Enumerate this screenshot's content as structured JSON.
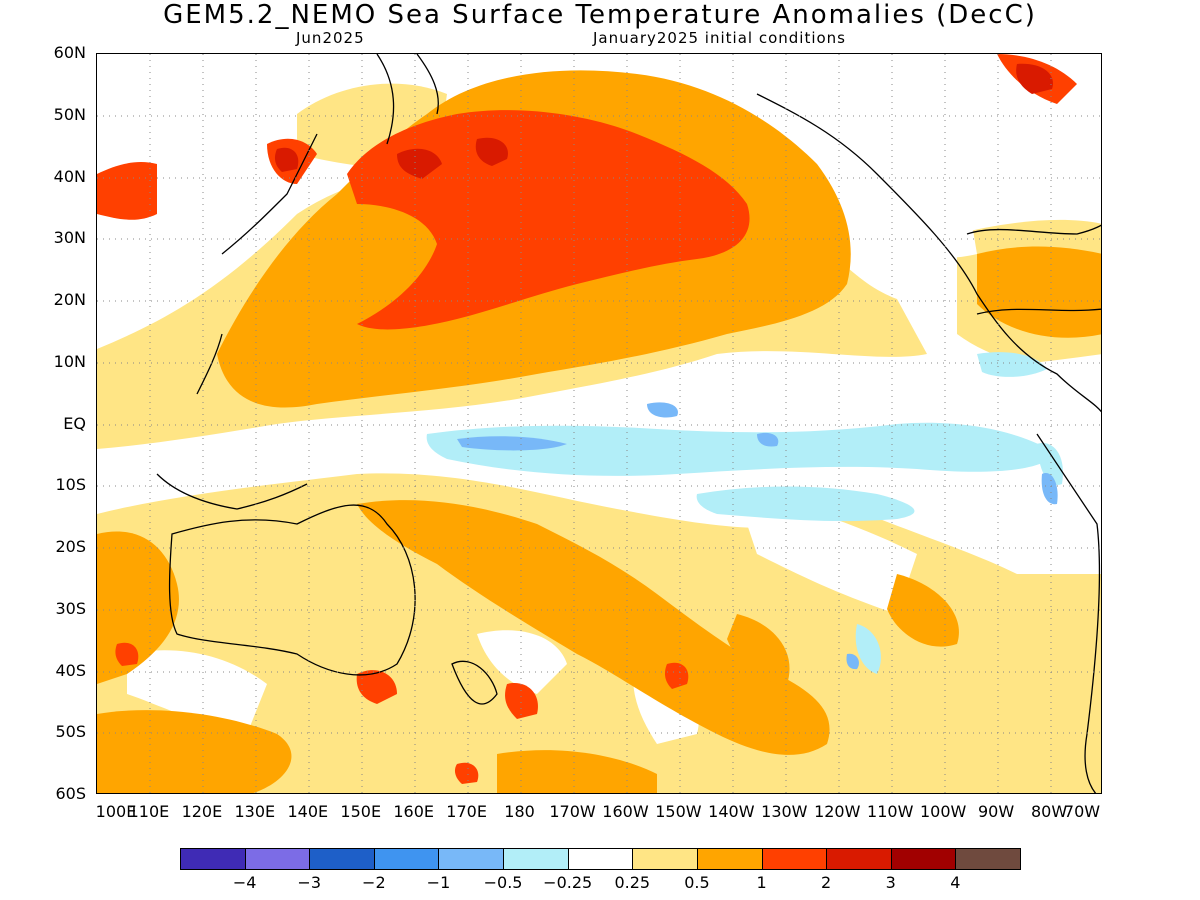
{
  "header": {
    "title": "GEM5.2_NEMO Sea Surface Temperature Anomalies (DecC)",
    "forecast_month": "Jun2025",
    "initial_conditions": "January2025 initial conditions"
  },
  "map": {
    "lat_labels": [
      "60N",
      "50N",
      "40N",
      "30N",
      "20N",
      "10N",
      "EQ",
      "10S",
      "20S",
      "30S",
      "40S",
      "50S",
      "60S"
    ],
    "lon_labels": [
      "100E",
      "110E",
      "120E",
      "130E",
      "140E",
      "150E",
      "160E",
      "170E",
      "180",
      "170W",
      "160W",
      "150W",
      "140W",
      "130W",
      "120W",
      "110W",
      "100W",
      "90W",
      "80W",
      "70W"
    ],
    "lat_range": [
      "60N",
      "60S"
    ],
    "lon_range": [
      "100E",
      "70W"
    ],
    "grid": true,
    "anomaly_regions": [
      {
        "region": "North Pacific centered ~165W 35N",
        "level": "1 to 2"
      },
      {
        "region": "NW Pacific off Japan",
        "level": "2 to 3"
      },
      {
        "region": "Gulf of Alaska coast",
        "level": "0.25 to 0.5"
      },
      {
        "region": "Equatorial central/east Pacific",
        "level": "-0.5 to -0.25"
      },
      {
        "region": "Equatorial cold tongue spots",
        "level": "-1 to -0.5"
      },
      {
        "region": "South Pacific subtropics",
        "level": "0.5 to 1"
      },
      {
        "region": "Western Atlantic / Gulf of Mexico",
        "level": "0.5 to 1"
      }
    ]
  },
  "colorbar": {
    "colors": [
      "#3f2bb5",
      "#7c6ce6",
      "#1e5fc8",
      "#3f94f0",
      "#78b8f8",
      "#b2eef8",
      "#ffffff",
      "#ffe585",
      "#ffa500",
      "#ff4000",
      "#d91a00",
      "#a10000",
      "#6f4a3e"
    ],
    "labels": [
      "−4",
      "−3",
      "−2",
      "−1",
      "−0.5",
      "−0.25",
      "0.25",
      "0.5",
      "1",
      "2",
      "3",
      "4"
    ]
  }
}
